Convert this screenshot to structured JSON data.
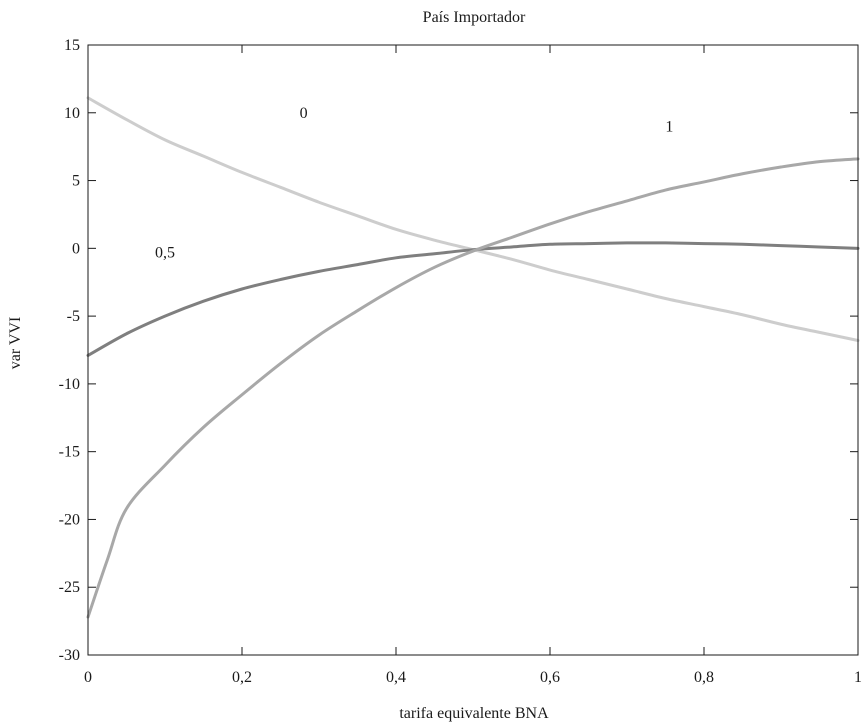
{
  "chart_data": {
    "type": "line",
    "title": "País Importador",
    "xlabel": "tarifa equivalente BNA",
    "ylabel": "var VVI",
    "xlim": [
      0,
      1
    ],
    "ylim": [
      -30,
      15
    ],
    "x_ticks": [
      {
        "value": 0,
        "label": "0"
      },
      {
        "value": 0.2,
        "label": "0,2"
      },
      {
        "value": 0.4,
        "label": "0,4"
      },
      {
        "value": 0.6,
        "label": "0,6"
      },
      {
        "value": 0.8,
        "label": "0,8"
      },
      {
        "value": 1,
        "label": "1"
      }
    ],
    "y_ticks": [
      {
        "value": 15,
        "label": "15"
      },
      {
        "value": 10,
        "label": "10"
      },
      {
        "value": 5,
        "label": "5"
      },
      {
        "value": 0,
        "label": "0"
      },
      {
        "value": -5,
        "label": "-5"
      },
      {
        "value": -10,
        "label": "-10"
      },
      {
        "value": -15,
        "label": "-15"
      },
      {
        "value": -20,
        "label": "-20"
      },
      {
        "value": -25,
        "label": "-25"
      },
      {
        "value": -30,
        "label": "-30"
      }
    ],
    "grid": false,
    "legend": "none",
    "series": [
      {
        "id": "s0",
        "color": "#cdcdcd",
        "x": [
          0,
          0.05,
          0.1,
          0.15,
          0.2,
          0.25,
          0.3,
          0.35,
          0.4,
          0.45,
          0.5,
          0.55,
          0.6,
          0.65,
          0.7,
          0.75,
          0.8,
          0.85,
          0.9,
          0.95,
          1
        ],
        "y": [
          11.1,
          9.5,
          8.0,
          6.8,
          5.6,
          4.5,
          3.4,
          2.4,
          1.4,
          0.6,
          -0.1,
          -0.8,
          -1.6,
          -2.3,
          -3.0,
          -3.7,
          -4.3,
          -4.9,
          -5.6,
          -6.2,
          -6.8
        ]
      },
      {
        "id": "s05",
        "color": "#7f7f7f",
        "x": [
          0,
          0.05,
          0.1,
          0.15,
          0.2,
          0.25,
          0.3,
          0.35,
          0.4,
          0.45,
          0.5,
          0.55,
          0.6,
          0.65,
          0.7,
          0.75,
          0.8,
          0.85,
          0.9,
          0.95,
          1
        ],
        "y": [
          -7.9,
          -6.3,
          -5.0,
          -3.9,
          -3.0,
          -2.3,
          -1.7,
          -1.2,
          -0.7,
          -0.4,
          -0.1,
          0.1,
          0.3,
          0.35,
          0.4,
          0.4,
          0.35,
          0.3,
          0.2,
          0.1,
          0.0
        ]
      },
      {
        "id": "s1",
        "color": "#a8a8a8",
        "x": [
          0,
          0.025,
          0.05,
          0.1,
          0.15,
          0.2,
          0.25,
          0.3,
          0.35,
          0.4,
          0.45,
          0.5,
          0.55,
          0.6,
          0.65,
          0.7,
          0.75,
          0.8,
          0.85,
          0.9,
          0.95,
          1
        ],
        "y": [
          -27.2,
          -23.0,
          -19.2,
          -16.0,
          -13.2,
          -10.8,
          -8.5,
          -6.4,
          -4.6,
          -2.9,
          -1.4,
          -0.2,
          0.8,
          1.8,
          2.7,
          3.5,
          4.3,
          4.9,
          5.5,
          6.0,
          6.4,
          6.6
        ]
      }
    ],
    "annotations": [
      {
        "id": "a0",
        "text": "0",
        "x": 0.28,
        "y": 10
      },
      {
        "id": "a1",
        "text": "1",
        "x": 0.755,
        "y": 9
      },
      {
        "id": "a05",
        "text": "0,5",
        "x": 0.1,
        "y": -0.3
      }
    ]
  }
}
